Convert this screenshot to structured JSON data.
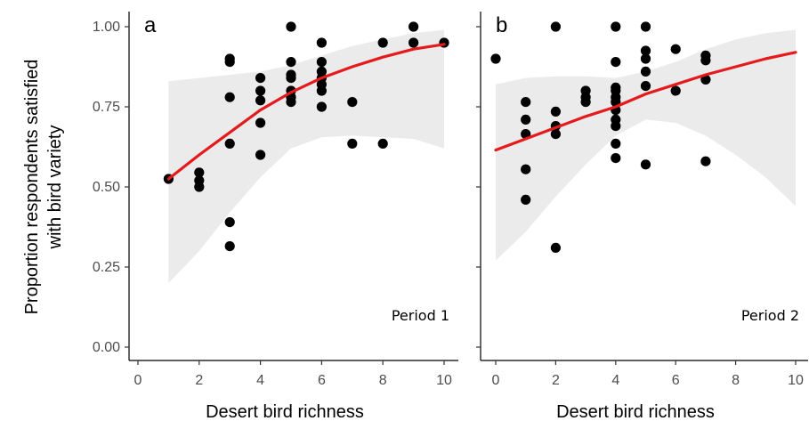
{
  "chart_data": {
    "type": "scatter",
    "ylabel_lines": [
      "Proportion respondents satisfied",
      "with bird variety"
    ],
    "y_ticks": [
      "0.00",
      "0.25",
      "0.50",
      "0.75",
      "1.00"
    ],
    "x_ticks": [
      "0",
      "2",
      "4",
      "6",
      "8",
      "10"
    ],
    "xlim": [
      0,
      10
    ],
    "ylim": [
      0,
      1
    ],
    "grid": false,
    "line_color": "#e41a1c",
    "point_color": "#000000",
    "band_color": "#ebebeb",
    "panels": [
      {
        "letter": "a",
        "period": "Period 1",
        "xlabel": "Desert bird richness",
        "points": [
          [
            1,
            0.525
          ],
          [
            2,
            0.545
          ],
          [
            2,
            0.52
          ],
          [
            2,
            0.5
          ],
          [
            3,
            0.9
          ],
          [
            3,
            0.89
          ],
          [
            3,
            0.78
          ],
          [
            3,
            0.635
          ],
          [
            3,
            0.39
          ],
          [
            3,
            0.315
          ],
          [
            4,
            0.84
          ],
          [
            4,
            0.8
          ],
          [
            4,
            0.77
          ],
          [
            4,
            0.7
          ],
          [
            4,
            0.6
          ],
          [
            5,
            1.0
          ],
          [
            5,
            0.89
          ],
          [
            5,
            0.85
          ],
          [
            5,
            0.84
          ],
          [
            5,
            0.8
          ],
          [
            5,
            0.78
          ],
          [
            5,
            0.765
          ],
          [
            6,
            0.95
          ],
          [
            6,
            0.89
          ],
          [
            6,
            0.86
          ],
          [
            6,
            0.84
          ],
          [
            6,
            0.82
          ],
          [
            6,
            0.8
          ],
          [
            6,
            0.75
          ],
          [
            7,
            0.765
          ],
          [
            7,
            0.635
          ],
          [
            8,
            0.95
          ],
          [
            8,
            0.635
          ],
          [
            9,
            1.0
          ],
          [
            9,
            0.95
          ],
          [
            10,
            0.95
          ]
        ],
        "fit": [
          [
            1,
            0.525
          ],
          [
            2,
            0.6
          ],
          [
            3,
            0.67
          ],
          [
            4,
            0.74
          ],
          [
            5,
            0.795
          ],
          [
            6,
            0.84
          ],
          [
            7,
            0.875
          ],
          [
            8,
            0.905
          ],
          [
            9,
            0.93
          ],
          [
            10,
            0.945
          ]
        ],
        "band_upper": [
          [
            1,
            0.83
          ],
          [
            2,
            0.84
          ],
          [
            3,
            0.85
          ],
          [
            4,
            0.86
          ],
          [
            5,
            0.88
          ],
          [
            6,
            0.91
          ],
          [
            7,
            0.94
          ],
          [
            8,
            0.96
          ],
          [
            9,
            0.98
          ],
          [
            10,
            0.99
          ]
        ],
        "band_lower": [
          [
            1,
            0.2
          ],
          [
            2,
            0.3
          ],
          [
            3,
            0.42
          ],
          [
            4,
            0.53
          ],
          [
            5,
            0.62
          ],
          [
            6,
            0.655
          ],
          [
            7,
            0.66
          ],
          [
            8,
            0.655
          ],
          [
            9,
            0.65
          ],
          [
            10,
            0.62
          ]
        ]
      },
      {
        "letter": "b",
        "period": "Period 2",
        "xlabel": "Desert bird richness",
        "points": [
          [
            0,
            0.9
          ],
          [
            1,
            0.765
          ],
          [
            1,
            0.71
          ],
          [
            1,
            0.665
          ],
          [
            1,
            0.555
          ],
          [
            1,
            0.46
          ],
          [
            2,
            1.0
          ],
          [
            2,
            0.735
          ],
          [
            2,
            0.69
          ],
          [
            2,
            0.665
          ],
          [
            2,
            0.31
          ],
          [
            3,
            0.8
          ],
          [
            3,
            0.78
          ],
          [
            3,
            0.765
          ],
          [
            4,
            1.0
          ],
          [
            4,
            0.89
          ],
          [
            4,
            0.81
          ],
          [
            4,
            0.8
          ],
          [
            4,
            0.78
          ],
          [
            4,
            0.765
          ],
          [
            4,
            0.74
          ],
          [
            4,
            0.71
          ],
          [
            4,
            0.69
          ],
          [
            4,
            0.635
          ],
          [
            4,
            0.59
          ],
          [
            5,
            1.0
          ],
          [
            5,
            0.925
          ],
          [
            5,
            0.9
          ],
          [
            5,
            0.86
          ],
          [
            5,
            0.815
          ],
          [
            5,
            0.57
          ],
          [
            6,
            0.93
          ],
          [
            6,
            0.8
          ],
          [
            7,
            0.91
          ],
          [
            7,
            0.895
          ],
          [
            7,
            0.835
          ],
          [
            7,
            0.58
          ]
        ],
        "fit": [
          [
            0,
            0.615
          ],
          [
            1,
            0.65
          ],
          [
            2,
            0.685
          ],
          [
            3,
            0.72
          ],
          [
            4,
            0.75
          ],
          [
            5,
            0.79
          ],
          [
            6,
            0.82
          ],
          [
            7,
            0.85
          ],
          [
            8,
            0.875
          ],
          [
            9,
            0.9
          ],
          [
            10,
            0.92
          ]
        ],
        "band_upper": [
          [
            0,
            0.82
          ],
          [
            1,
            0.84
          ],
          [
            2,
            0.845
          ],
          [
            3,
            0.845
          ],
          [
            4,
            0.84
          ],
          [
            5,
            0.86
          ],
          [
            6,
            0.89
          ],
          [
            7,
            0.93
          ],
          [
            8,
            0.96
          ],
          [
            9,
            0.98
          ],
          [
            10,
            0.99
          ]
        ],
        "band_lower": [
          [
            0,
            0.27
          ],
          [
            1,
            0.36
          ],
          [
            2,
            0.47
          ],
          [
            3,
            0.57
          ],
          [
            4,
            0.66
          ],
          [
            5,
            0.71
          ],
          [
            6,
            0.7
          ],
          [
            7,
            0.66
          ],
          [
            8,
            0.6
          ],
          [
            9,
            0.53
          ],
          [
            10,
            0.44
          ]
        ]
      }
    ]
  }
}
